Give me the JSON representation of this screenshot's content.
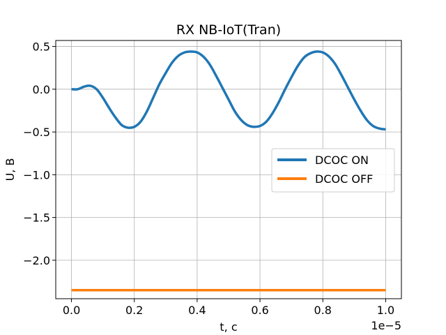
{
  "chart_data": {
    "type": "line",
    "title": "RX NB-IoT(Tran)",
    "xlabel": "t, c",
    "ylabel": "U, B",
    "x_offset_label": "1e−5",
    "xlim": [
      -0.05,
      1.05
    ],
    "ylim": [
      -2.45,
      0.57
    ],
    "grid": true,
    "legend": {
      "placement": "center-right",
      "entries": [
        "DCOC ON",
        "DCOC OFF"
      ]
    },
    "x_ticks": [
      0.0,
      0.2,
      0.4,
      0.6,
      0.8,
      1.0
    ],
    "x_tick_labels": [
      "0.0",
      "0.2",
      "0.4",
      "0.6",
      "0.8",
      "1.0"
    ],
    "y_ticks": [
      0.5,
      0.0,
      -0.5,
      -1.0,
      -1.5,
      -2.0
    ],
    "y_tick_labels": [
      "0.5",
      "0.0",
      "−0.5",
      "−1.0",
      "−1.5",
      "−2.0"
    ],
    "series": [
      {
        "name": "DCOC ON",
        "color": "#1f77b4",
        "x": [
          0.0,
          0.02,
          0.04,
          0.06,
          0.08,
          0.1,
          0.12,
          0.14,
          0.16,
          0.18,
          0.2,
          0.22,
          0.24,
          0.26,
          0.28,
          0.3,
          0.32,
          0.34,
          0.36,
          0.38,
          0.4,
          0.42,
          0.44,
          0.46,
          0.48,
          0.5,
          0.52,
          0.54,
          0.56,
          0.58,
          0.6,
          0.62,
          0.64,
          0.66,
          0.68,
          0.7,
          0.72,
          0.74,
          0.76,
          0.78,
          0.8,
          0.82,
          0.84,
          0.86,
          0.88,
          0.9,
          0.92,
          0.94,
          0.96,
          0.98,
          1.0
        ],
        "y": [
          0.0,
          0.0,
          0.03,
          0.04,
          0.0,
          -0.1,
          -0.22,
          -0.33,
          -0.42,
          -0.45,
          -0.44,
          -0.38,
          -0.26,
          -0.1,
          0.06,
          0.19,
          0.31,
          0.39,
          0.43,
          0.44,
          0.43,
          0.38,
          0.29,
          0.16,
          0.02,
          -0.12,
          -0.26,
          -0.36,
          -0.42,
          -0.44,
          -0.43,
          -0.38,
          -0.28,
          -0.15,
          0.0,
          0.14,
          0.27,
          0.37,
          0.42,
          0.44,
          0.43,
          0.38,
          0.29,
          0.16,
          0.02,
          -0.12,
          -0.25,
          -0.36,
          -0.43,
          -0.46,
          -0.47
        ]
      },
      {
        "name": "DCOC OFF",
        "color": "#ff7f0e",
        "x": [
          0.0,
          1.0
        ],
        "y": [
          -2.35,
          -2.35
        ]
      }
    ]
  }
}
